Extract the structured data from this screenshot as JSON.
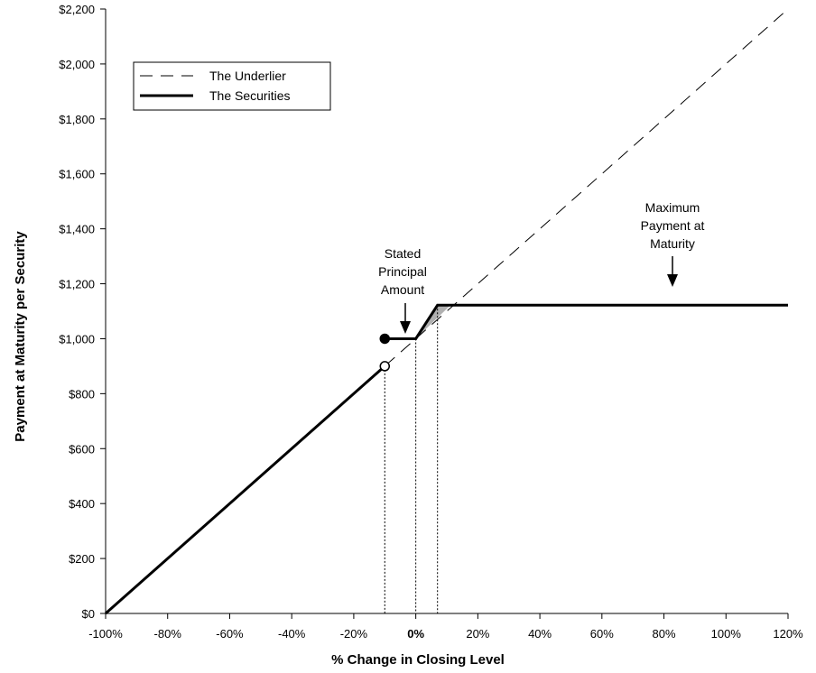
{
  "chart_data": {
    "type": "line",
    "xlabel": "% Change in Closing Level",
    "ylabel": "Payment at Maturity per Security",
    "xlim": [
      -100,
      120
    ],
    "ylim": [
      0,
      2200
    ],
    "x_ticks": [
      -100,
      -80,
      -60,
      -40,
      -20,
      0,
      20,
      40,
      60,
      80,
      100,
      120
    ],
    "x_tick_labels": [
      "-100%",
      "-80%",
      "-60%",
      "-40%",
      "-20%",
      "0%",
      "20%",
      "40%",
      "60%",
      "80%",
      "100%",
      "120%"
    ],
    "y_ticks": [
      0,
      200,
      400,
      600,
      800,
      1000,
      1200,
      1400,
      1600,
      1800,
      2000,
      2200
    ],
    "y_tick_labels": [
      "$0",
      "$200",
      "$400",
      "$600",
      "$800",
      "$1,000",
      "$1,200",
      "$1,400",
      "$1,600",
      "$1,800",
      "$2,000",
      "$2,200"
    ],
    "grid": false,
    "legend_position": "top-left",
    "series": [
      {
        "name": "The Underlier",
        "style": "dashed",
        "points": [
          [
            -100,
            0
          ],
          [
            120,
            2200
          ]
        ]
      },
      {
        "name": "The Securities",
        "style": "solid-thick",
        "segments": [
          [
            [
              -100,
              0
            ],
            [
              -10,
              900
            ]
          ],
          [
            [
              -10,
              1000
            ],
            [
              0,
              1000
            ],
            [
              7,
              1122
            ],
            [
              120,
              1122
            ]
          ]
        ]
      }
    ],
    "markers": [
      {
        "x": -10,
        "y": 1000,
        "fill": "filled"
      },
      {
        "x": -10,
        "y": 900,
        "fill": "open"
      }
    ],
    "reference_lines_x": [
      -10,
      0,
      7
    ],
    "shaded_region": [
      [
        0,
        1000
      ],
      [
        7,
        1122
      ],
      [
        11.2,
        1122
      ]
    ],
    "annotations": [
      {
        "lines": [
          "Stated",
          "Principal",
          "Amount"
        ],
        "arrow_to": [
          -5,
          1000
        ]
      },
      {
        "lines": [
          "Maximum",
          "Payment at",
          "Maturity"
        ],
        "arrow_to": [
          81,
          1180
        ]
      }
    ]
  },
  "colors": {
    "line": "#000000",
    "shade": "#b0b0b0"
  }
}
